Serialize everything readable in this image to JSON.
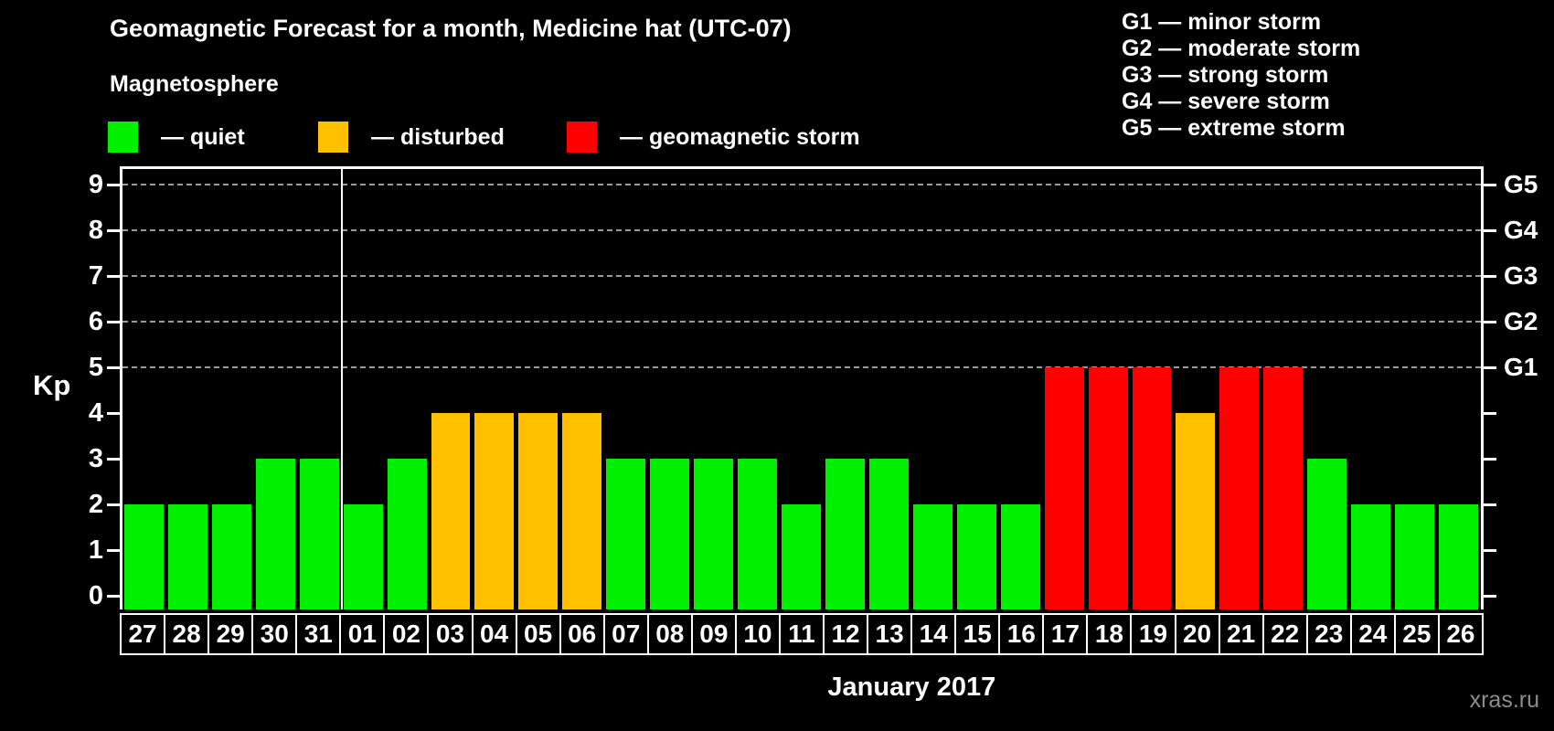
{
  "header": {
    "title": "Geomagnetic Forecast for a month, Medicine hat (UTC-07)",
    "subtitle": "Magnetosphere"
  },
  "magnetosphere_legend": [
    {
      "key": "quiet",
      "label": "— quiet"
    },
    {
      "key": "disturbed",
      "label": "— disturbed"
    },
    {
      "key": "storm",
      "label": "— geomagnetic storm"
    }
  ],
  "g_scale_legend": [
    "G1 — minor storm",
    "G2 — moderate storm",
    "G3 — strong storm",
    "G4 — severe storm",
    "G5 — extreme storm"
  ],
  "colors": {
    "quiet": "#00f000",
    "disturbed": "#ffc000",
    "storm": "#ff0000",
    "axis": "#ffffff",
    "grid": "#9b9b9b",
    "background": "#000000",
    "watermark": "#8c8c8c"
  },
  "axis": {
    "kp_label": "Kp",
    "y_ticks": [
      "0",
      "1",
      "2",
      "3",
      "4",
      "5",
      "6",
      "7",
      "8",
      "9"
    ],
    "g_labels": [
      {
        "label": "G1",
        "kp": 5
      },
      {
        "label": "G2",
        "kp": 6
      },
      {
        "label": "G3",
        "kp": 7
      },
      {
        "label": "G4",
        "kp": 8
      },
      {
        "label": "G5",
        "kp": 9
      }
    ],
    "month_label": "January 2017"
  },
  "watermark": "xras.ru",
  "chart_data": {
    "type": "bar",
    "title": "Geomagnetic Forecast for a month, Medicine hat (UTC-07)",
    "xlabel": "January 2017",
    "ylabel": "Kp",
    "ylim": [
      0,
      9
    ],
    "grid": "dashed horizontal gridlines at Kp 5,6,7,8,9 (G1–G5)",
    "legend_position": "top",
    "categories": [
      "27",
      "28",
      "29",
      "30",
      "31",
      "01",
      "02",
      "03",
      "04",
      "05",
      "06",
      "07",
      "08",
      "09",
      "10",
      "11",
      "12",
      "13",
      "14",
      "15",
      "16",
      "17",
      "18",
      "19",
      "20",
      "21",
      "22",
      "23",
      "24",
      "25",
      "26"
    ],
    "values": [
      2,
      2,
      2,
      3,
      3,
      2,
      3,
      4,
      4,
      4,
      4,
      3,
      3,
      3,
      3,
      2,
      3,
      3,
      2,
      2,
      2,
      5,
      5,
      5,
      4,
      5,
      5,
      3,
      2,
      2,
      2
    ],
    "statuses": [
      "quiet",
      "quiet",
      "quiet",
      "quiet",
      "quiet",
      "quiet",
      "quiet",
      "disturbed",
      "disturbed",
      "disturbed",
      "disturbed",
      "quiet",
      "quiet",
      "quiet",
      "quiet",
      "quiet",
      "quiet",
      "quiet",
      "quiet",
      "quiet",
      "quiet",
      "storm",
      "storm",
      "storm",
      "disturbed",
      "storm",
      "storm",
      "quiet",
      "quiet",
      "quiet",
      "quiet"
    ],
    "month_separator_index": 5
  }
}
